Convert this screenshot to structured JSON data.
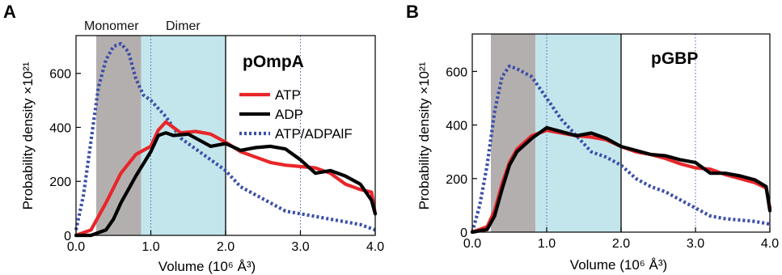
{
  "figure": {
    "panels": [
      {
        "letter": "A",
        "protein": "pOmpA",
        "region_labels": [
          "Monomer",
          "Dimer"
        ],
        "xlabel": "Volume (10⁶ Å³)",
        "ylabel": "Probability density ×10²¹"
      },
      {
        "letter": "B",
        "protein": "pGBP",
        "xlabel": "Volume (10⁶ Å³)",
        "ylabel": "Probability density ×10²¹"
      }
    ]
  },
  "colors": {
    "ATP": "#e8262a",
    "ADP": "#000000",
    "ATP/ADPAlF": "#3b4fa8",
    "monomer_band": "#b4afaf",
    "dimer_band": "#c3e6ec"
  },
  "chart_data": [
    {
      "type": "line",
      "title": "pOmpA",
      "xlabel": "Volume (10⁶ Å³)",
      "ylabel": "Probability density ×10²¹",
      "xlim": [
        0,
        4
      ],
      "ylim": [
        0,
        740
      ],
      "xticks": [
        0,
        1,
        2,
        3,
        4
      ],
      "xtick_labels": [
        "0.0",
        "1.0",
        "2.0",
        "3.0",
        "4.0"
      ],
      "yticks": [
        0,
        200,
        400,
        600
      ],
      "ytick_labels": [
        "0",
        "200",
        "400",
        "600"
      ],
      "legend_position": "top-right",
      "shaded_regions": [
        {
          "label": "Monomer",
          "x": [
            0.27,
            0.87
          ],
          "color": "#b4afaf"
        },
        {
          "label": "Dimer",
          "x": [
            0.87,
            2.0
          ],
          "color": "#c3e6ec"
        }
      ],
      "vertical_lines": [
        {
          "x": 1.0,
          "style": "dotted"
        },
        {
          "x": 2.0,
          "style": "solid"
        },
        {
          "x": 3.0,
          "style": "dotted"
        }
      ],
      "series": [
        {
          "name": "ATP",
          "style": "solid",
          "x": [
            0.0,
            0.2,
            0.4,
            0.6,
            0.8,
            1.0,
            1.1,
            1.2,
            1.3,
            1.4,
            1.6,
            1.8,
            2.0,
            2.2,
            2.4,
            2.6,
            2.8,
            3.0,
            3.2,
            3.4,
            3.6,
            3.8,
            3.95,
            4.0
          ],
          "y": [
            0,
            20,
            120,
            230,
            300,
            330,
            390,
            420,
            400,
            380,
            385,
            375,
            345,
            310,
            290,
            270,
            260,
            255,
            250,
            230,
            190,
            170,
            160,
            80
          ]
        },
        {
          "name": "ADP",
          "style": "solid",
          "x": [
            0.0,
            0.2,
            0.4,
            0.5,
            0.6,
            0.8,
            1.0,
            1.1,
            1.2,
            1.3,
            1.5,
            1.6,
            1.8,
            2.0,
            2.2,
            2.4,
            2.6,
            2.8,
            3.0,
            3.2,
            3.4,
            3.6,
            3.8,
            3.95,
            4.0
          ],
          "y": [
            0,
            0,
            20,
            60,
            120,
            220,
            310,
            370,
            380,
            370,
            375,
            360,
            330,
            340,
            315,
            325,
            330,
            320,
            280,
            230,
            240,
            220,
            190,
            130,
            80
          ]
        },
        {
          "name": "ATP/ADPAlF",
          "style": "dotted",
          "x": [
            0.0,
            0.1,
            0.2,
            0.3,
            0.4,
            0.5,
            0.6,
            0.7,
            0.8,
            0.9,
            1.0,
            1.2,
            1.4,
            1.6,
            1.8,
            2.0,
            2.2,
            2.4,
            2.6,
            2.8,
            3.0,
            3.2,
            3.4,
            3.6,
            3.8,
            4.0
          ],
          "y": [
            20,
            150,
            350,
            550,
            650,
            700,
            710,
            680,
            580,
            520,
            500,
            440,
            360,
            320,
            280,
            240,
            180,
            150,
            120,
            90,
            80,
            70,
            60,
            50,
            40,
            20
          ]
        }
      ]
    },
    {
      "type": "line",
      "title": "pGBP",
      "xlabel": "Volume (10⁶ Å³)",
      "ylabel": "Probability density ×10²¹",
      "xlim": [
        0,
        4
      ],
      "ylim": [
        0,
        740
      ],
      "xticks": [
        0,
        1,
        2,
        3,
        4
      ],
      "xtick_labels": [
        "0.0",
        "1.0",
        "2.0",
        "3.0",
        "4.0"
      ],
      "yticks": [
        0,
        200,
        400,
        600
      ],
      "ytick_labels": [
        "0",
        "200",
        "400",
        "600"
      ],
      "shaded_regions": [
        {
          "x": [
            0.25,
            0.85
          ],
          "color": "#b4afaf"
        },
        {
          "x": [
            0.85,
            2.0
          ],
          "color": "#c3e6ec"
        }
      ],
      "vertical_lines": [
        {
          "x": 1.0,
          "style": "dotted"
        },
        {
          "x": 2.0,
          "style": "solid"
        },
        {
          "x": 3.0,
          "style": "dotted"
        }
      ],
      "series": [
        {
          "name": "ATP",
          "style": "solid",
          "x": [
            0.0,
            0.2,
            0.3,
            0.4,
            0.5,
            0.6,
            0.8,
            1.0,
            1.2,
            1.4,
            1.6,
            1.8,
            2.0,
            2.2,
            2.4,
            2.6,
            2.8,
            3.0,
            3.2,
            3.4,
            3.6,
            3.8,
            3.95,
            4.0
          ],
          "y": [
            0,
            20,
            80,
            180,
            260,
            310,
            360,
            380,
            370,
            360,
            355,
            345,
            320,
            300,
            290,
            275,
            255,
            240,
            235,
            215,
            200,
            185,
            165,
            90
          ]
        },
        {
          "name": "ADP",
          "style": "solid",
          "x": [
            0.0,
            0.2,
            0.3,
            0.4,
            0.5,
            0.6,
            0.8,
            1.0,
            1.2,
            1.4,
            1.6,
            1.8,
            2.0,
            2.2,
            2.4,
            2.6,
            2.8,
            3.0,
            3.2,
            3.4,
            3.6,
            3.8,
            3.95,
            4.0
          ],
          "y": [
            0,
            10,
            60,
            160,
            250,
            300,
            350,
            390,
            375,
            360,
            370,
            350,
            320,
            305,
            290,
            285,
            270,
            260,
            220,
            220,
            210,
            195,
            170,
            80
          ]
        },
        {
          "name": "ATP/ADPAlF",
          "style": "dotted",
          "x": [
            0.0,
            0.1,
            0.2,
            0.3,
            0.4,
            0.5,
            0.6,
            0.8,
            1.0,
            1.2,
            1.4,
            1.6,
            1.8,
            2.0,
            2.2,
            2.4,
            2.6,
            2.8,
            3.0,
            3.2,
            3.4,
            3.6,
            3.8,
            4.0
          ],
          "y": [
            0,
            100,
            250,
            450,
            580,
            620,
            610,
            580,
            500,
            420,
            360,
            300,
            280,
            250,
            200,
            170,
            150,
            120,
            90,
            60,
            50,
            45,
            40,
            30
          ]
        }
      ]
    }
  ]
}
